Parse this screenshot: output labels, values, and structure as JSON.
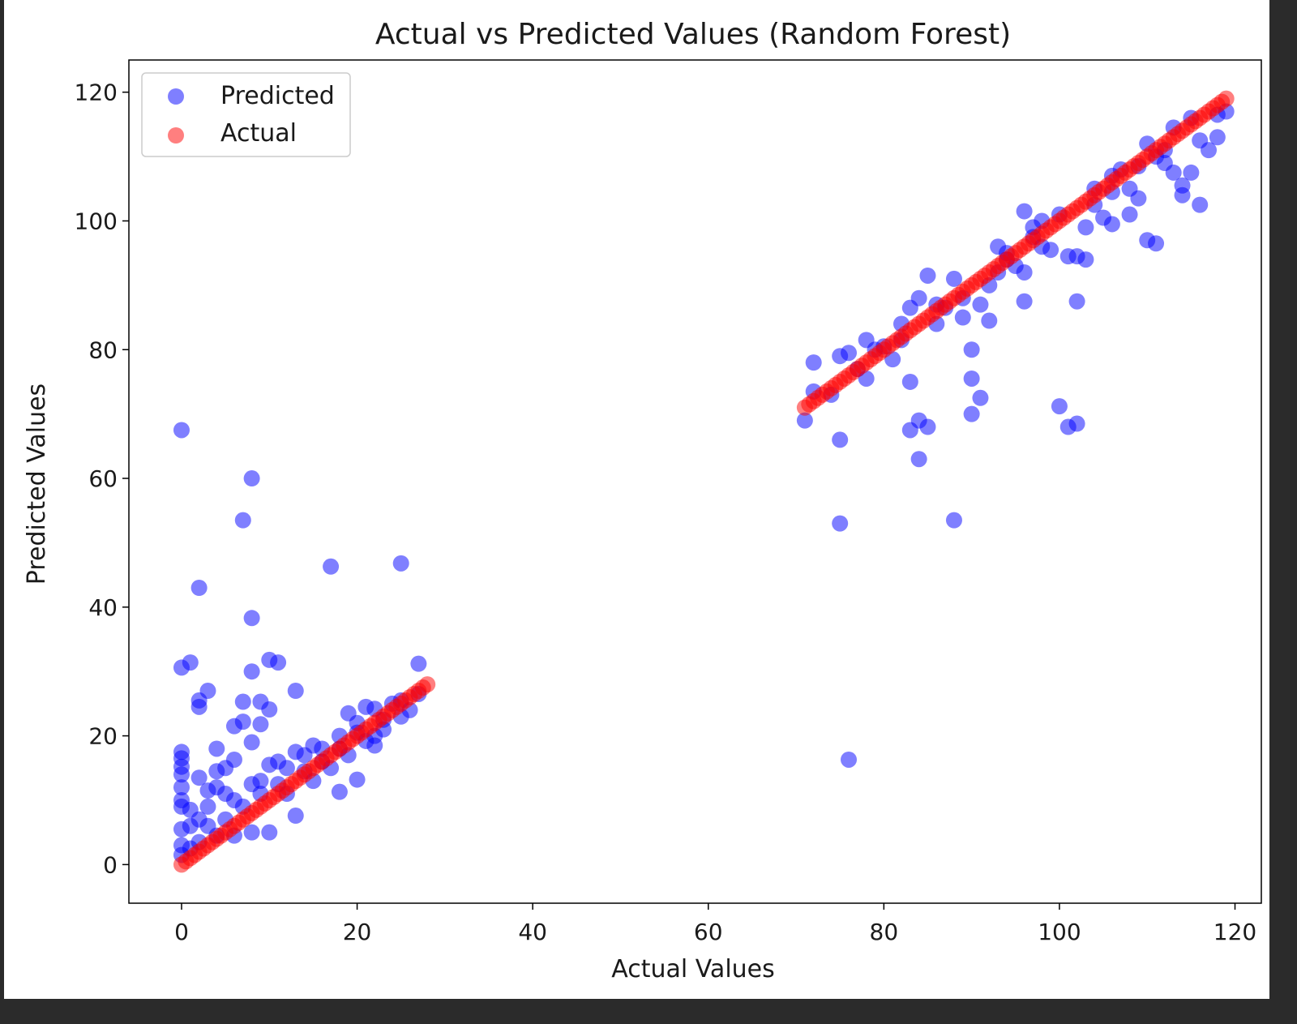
{
  "chart_data": {
    "type": "scatter",
    "title": "Actual vs Predicted Values (Random Forest)",
    "xlabel": "Actual Values",
    "ylabel": "Predicted Values",
    "xlim": [
      -6,
      123
    ],
    "ylim": [
      -6,
      125
    ],
    "xticks": [
      0,
      20,
      40,
      60,
      80,
      100,
      120
    ],
    "yticks": [
      0,
      20,
      40,
      60,
      80,
      100,
      120
    ],
    "xtick_labels": [
      "0",
      "20",
      "40",
      "60",
      "80",
      "100",
      "120"
    ],
    "ytick_labels": [
      "0",
      "20",
      "40",
      "60",
      "80",
      "100",
      "120"
    ],
    "grid": false,
    "legend_position": "upper-left",
    "series": [
      {
        "name": "Predicted",
        "color": "#0000ff",
        "alpha": 0.5,
        "points": [
          [
            0,
            67.5
          ],
          [
            8,
            60
          ],
          [
            7,
            53.5
          ],
          [
            2,
            43
          ],
          [
            17,
            46.3
          ],
          [
            25,
            46.8
          ],
          [
            8,
            38.3
          ],
          [
            0,
            30.6
          ],
          [
            1,
            31.4
          ],
          [
            8,
            30
          ],
          [
            10,
            31.8
          ],
          [
            11,
            31.4
          ],
          [
            27,
            31.2
          ],
          [
            3,
            27
          ],
          [
            13,
            27
          ],
          [
            2,
            25.5
          ],
          [
            2,
            24.5
          ],
          [
            7,
            25.3
          ],
          [
            9,
            25.3
          ],
          [
            10,
            24.1
          ],
          [
            7,
            22.2
          ],
          [
            6,
            21.5
          ],
          [
            9,
            21.8
          ],
          [
            8,
            19
          ],
          [
            0,
            17.5
          ],
          [
            0,
            16.5
          ],
          [
            0,
            15.2
          ],
          [
            0,
            14
          ],
          [
            0,
            12
          ],
          [
            0,
            10
          ],
          [
            0,
            9
          ],
          [
            1,
            8.5
          ],
          [
            2,
            13.5
          ],
          [
            4,
            18
          ],
          [
            4,
            14.5
          ],
          [
            5,
            15
          ],
          [
            6,
            16.3
          ],
          [
            4,
            12
          ],
          [
            5,
            11
          ],
          [
            3,
            11.5
          ],
          [
            8,
            12.5
          ],
          [
            9,
            13
          ],
          [
            10,
            15.5
          ],
          [
            11,
            16
          ],
          [
            12,
            15
          ],
          [
            13,
            17.5
          ],
          [
            15,
            18.5
          ],
          [
            16,
            18
          ],
          [
            14,
            17
          ],
          [
            18,
            20
          ],
          [
            19,
            23.5
          ],
          [
            20,
            22
          ],
          [
            21,
            24.5
          ],
          [
            22,
            24.2
          ],
          [
            23,
            22.5
          ],
          [
            24,
            25
          ],
          [
            25,
            23
          ],
          [
            26,
            24
          ],
          [
            27,
            26.5
          ],
          [
            21,
            19.2
          ],
          [
            22,
            18.5
          ],
          [
            20,
            13.2
          ],
          [
            18,
            11.3
          ],
          [
            13,
            7.6
          ],
          [
            10,
            5
          ],
          [
            8,
            5
          ],
          [
            6,
            4.5
          ],
          [
            4,
            4.5
          ],
          [
            2,
            3.5
          ],
          [
            1,
            2.5
          ],
          [
            0,
            3
          ],
          [
            0,
            5.5
          ],
          [
            0,
            1.5
          ],
          [
            1,
            6
          ],
          [
            2,
            7
          ],
          [
            3,
            6
          ],
          [
            5,
            7
          ],
          [
            7,
            9
          ],
          [
            9,
            11
          ],
          [
            11,
            12.5
          ],
          [
            14,
            14.5
          ],
          [
            16,
            16
          ],
          [
            18,
            18
          ],
          [
            20,
            20.5
          ],
          [
            23,
            21
          ],
          [
            25,
            25.5
          ],
          [
            3,
            9
          ],
          [
            6,
            10
          ],
          [
            12,
            11
          ],
          [
            15,
            13
          ],
          [
            17,
            15
          ],
          [
            19,
            17
          ],
          [
            22,
            20
          ],
          [
            71,
            69
          ],
          [
            72,
            78
          ],
          [
            72,
            73.5
          ],
          [
            74,
            73
          ],
          [
            75,
            79
          ],
          [
            75,
            66
          ],
          [
            75,
            53
          ],
          [
            76,
            16.3
          ],
          [
            76,
            79.5
          ],
          [
            78,
            81.5
          ],
          [
            78,
            75.5
          ],
          [
            80,
            80.5
          ],
          [
            81,
            78.5
          ],
          [
            82,
            84
          ],
          [
            83,
            86.5
          ],
          [
            84,
            88
          ],
          [
            85,
            91.5
          ],
          [
            83,
            75
          ],
          [
            84,
            69
          ],
          [
            85,
            68
          ],
          [
            83,
            67.5
          ],
          [
            84,
            63
          ],
          [
            86,
            84
          ],
          [
            87,
            86.5
          ],
          [
            88,
            91
          ],
          [
            88,
            53.5
          ],
          [
            89,
            85
          ],
          [
            90,
            80
          ],
          [
            90,
            75.5
          ],
          [
            91,
            72.5
          ],
          [
            90,
            70
          ],
          [
            91,
            87
          ],
          [
            92,
            84.5
          ],
          [
            93,
            96
          ],
          [
            94,
            94
          ],
          [
            96,
            92
          ],
          [
            96,
            101.5
          ],
          [
            96,
            87.5
          ],
          [
            97,
            97.5
          ],
          [
            98,
            100
          ],
          [
            99,
            95.5
          ],
          [
            100,
            71.2
          ],
          [
            101,
            68
          ],
          [
            102,
            68.5
          ],
          [
            102,
            87.5
          ],
          [
            101,
            94.5
          ],
          [
            102,
            94.5
          ],
          [
            103,
            94
          ],
          [
            103,
            99
          ],
          [
            104,
            105
          ],
          [
            105,
            100.5
          ],
          [
            106,
            99.5
          ],
          [
            106,
            107
          ],
          [
            108,
            105
          ],
          [
            108,
            101
          ],
          [
            109,
            103.5
          ],
          [
            110,
            97
          ],
          [
            111,
            96.5
          ],
          [
            110,
            112
          ],
          [
            112,
            109
          ],
          [
            113,
            107.5
          ],
          [
            113,
            114.5
          ],
          [
            114,
            104
          ],
          [
            114,
            105.5
          ],
          [
            115,
            107.5
          ],
          [
            116,
            102.5
          ],
          [
            116,
            112.5
          ],
          [
            117,
            111
          ],
          [
            118,
            113
          ],
          [
            118,
            116.5
          ],
          [
            119,
            117
          ],
          [
            107,
            108
          ],
          [
            109,
            108.5
          ],
          [
            111,
            110
          ],
          [
            112,
            111
          ],
          [
            115,
            116
          ],
          [
            100,
            101
          ],
          [
            98,
            96
          ],
          [
            95,
            93
          ],
          [
            92,
            90
          ],
          [
            89,
            88
          ],
          [
            86,
            87
          ],
          [
            82,
            81.5
          ],
          [
            79,
            80
          ],
          [
            77,
            77
          ],
          [
            104,
            102.5
          ],
          [
            106,
            104.5
          ],
          [
            97,
            99
          ],
          [
            94,
            95
          ],
          [
            93,
            92
          ]
        ]
      },
      {
        "name": "Actual",
        "color": "#ff0000",
        "alpha": 0.5,
        "segments": [
          {
            "x0": 0,
            "x1": 28,
            "step": 0.5
          },
          {
            "x0": 71,
            "x1": 119,
            "step": 0.5
          }
        ]
      }
    ]
  }
}
